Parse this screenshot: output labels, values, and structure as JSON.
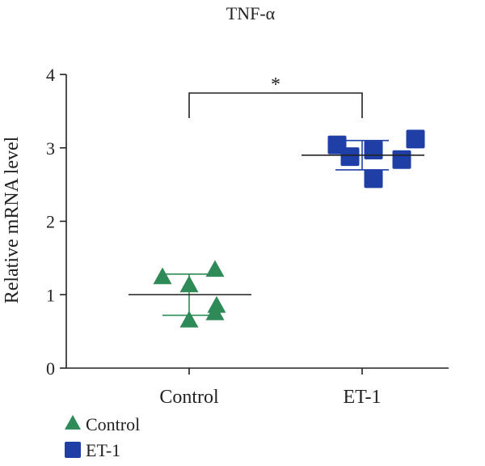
{
  "chart_data": {
    "type": "scatter",
    "title": "TNF-α",
    "ylabel": "Relative mRNA level",
    "xlabel": "",
    "ylim": [
      0,
      4
    ],
    "yticks": [
      0,
      1,
      2,
      3,
      4
    ],
    "categories": [
      "Control",
      "ET-1"
    ],
    "series": [
      {
        "name": "Control",
        "marker": "triangle",
        "color": "#2e8b57",
        "values": [
          1.23,
          0.84,
          1.12,
          0.64,
          1.33,
          0.74
        ],
        "mean": 1.0,
        "sd": 0.28
      },
      {
        "name": "ET-1",
        "marker": "square",
        "color": "#1f3fa6",
        "values": [
          3.04,
          2.88,
          2.58,
          2.97,
          2.84,
          3.12
        ],
        "mean": 2.9,
        "sd": 0.2
      }
    ],
    "significance": {
      "label": "*",
      "between": [
        "Control",
        "ET-1"
      ]
    },
    "legend": {
      "position": "bottom-left"
    },
    "grid": false
  }
}
